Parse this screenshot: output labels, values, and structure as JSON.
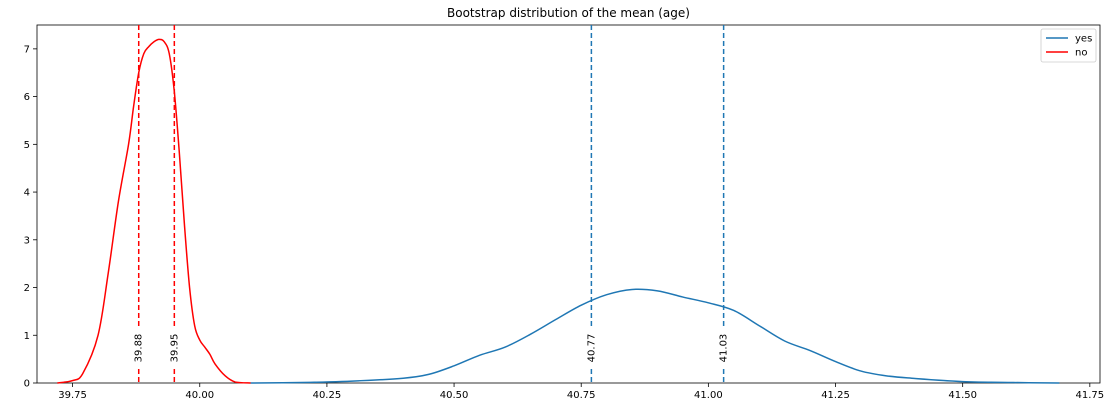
{
  "chart_data": {
    "type": "line",
    "title": "Bootstrap distribution of the mean (age)",
    "xlabel": "",
    "ylabel": "",
    "xlim": [
      39.68,
      41.77
    ],
    "ylim": [
      0,
      7.5
    ],
    "x_ticks": [
      39.75,
      40.0,
      40.25,
      40.5,
      40.75,
      41.0,
      41.25,
      41.5,
      41.75
    ],
    "x_tick_labels": [
      "39.75",
      "40.00",
      "40.25",
      "40.50",
      "40.75",
      "41.00",
      "41.25",
      "41.50",
      "41.75"
    ],
    "y_ticks": [
      0,
      1,
      2,
      3,
      4,
      5,
      6,
      7
    ],
    "y_tick_labels": [
      "0",
      "1",
      "2",
      "3",
      "4",
      "5",
      "6",
      "7"
    ],
    "grid": false,
    "legend_position": "top-right",
    "series": [
      {
        "name": "yes",
        "color": "#1f77b4",
        "x": [
          40.1,
          40.2,
          40.3,
          40.4,
          40.45,
          40.5,
          40.55,
          40.6,
          40.65,
          40.7,
          40.75,
          40.8,
          40.85,
          40.9,
          40.95,
          41.0,
          41.05,
          41.1,
          41.15,
          41.2,
          41.25,
          41.3,
          41.35,
          41.4,
          41.5,
          41.6,
          41.69
        ],
        "y": [
          0.0,
          0.01,
          0.04,
          0.1,
          0.18,
          0.36,
          0.58,
          0.75,
          1.02,
          1.33,
          1.63,
          1.85,
          1.96,
          1.93,
          1.8,
          1.68,
          1.52,
          1.2,
          0.88,
          0.68,
          0.45,
          0.25,
          0.15,
          0.1,
          0.03,
          0.01,
          0.0
        ]
      },
      {
        "name": "no",
        "color": "#ff0000",
        "x": [
          39.72,
          39.75,
          39.77,
          39.8,
          39.82,
          39.84,
          39.86,
          39.87,
          39.88,
          39.89,
          39.9,
          39.91,
          39.92,
          39.93,
          39.94,
          39.95,
          39.96,
          39.97,
          39.98,
          39.99,
          40.0,
          40.01,
          40.02,
          40.03,
          40.05,
          40.07,
          40.1
        ],
        "y": [
          0.0,
          0.05,
          0.2,
          1.0,
          2.3,
          3.8,
          5.0,
          5.8,
          6.5,
          6.9,
          7.05,
          7.15,
          7.2,
          7.15,
          6.9,
          6.1,
          4.8,
          3.3,
          2.0,
          1.2,
          0.9,
          0.75,
          0.6,
          0.4,
          0.15,
          0.02,
          0.0
        ]
      }
    ],
    "vlines": [
      {
        "x": 39.88,
        "label": "39.88",
        "color": "#ff0000"
      },
      {
        "x": 39.95,
        "label": "39.95",
        "color": "#ff0000"
      },
      {
        "x": 40.77,
        "label": "40.77",
        "color": "#1f77b4"
      },
      {
        "x": 41.03,
        "label": "41.03",
        "color": "#1f77b4"
      }
    ]
  }
}
